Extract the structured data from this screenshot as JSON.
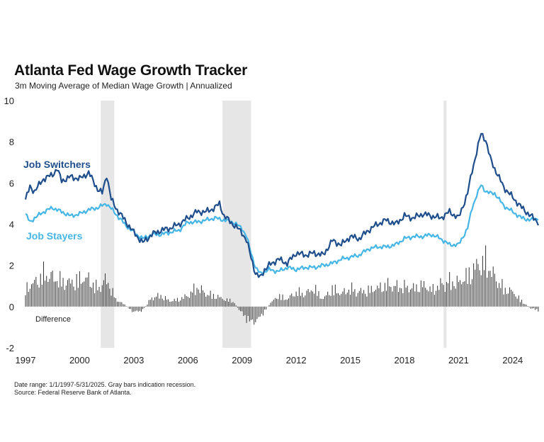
{
  "header": {
    "title": "Atlanta Fed Wage Growth Tracker",
    "subtitle": "3m Moving Average of Median Wage Growth | Annualized"
  },
  "footnote": {
    "line1": "Date range: 1/1/1997-5/31/2025. Gray bars indication recession.",
    "line2": "Source: Federal Reserve Bank of Atlanta."
  },
  "colors": {
    "switchers": "#1f4e8c",
    "stayers": "#45b6e6",
    "difference": "#333333",
    "recession": "#e6e6e6"
  },
  "chart_data": {
    "type": "line",
    "title": "Atlanta Fed Wage Growth Tracker",
    "subtitle": "3m Moving Average of Median Wage Growth | Annualized",
    "xlabel": "",
    "ylabel": "",
    "xlim": [
      1997.0,
      2025.42
    ],
    "ylim": [
      -2,
      10
    ],
    "yticks": [
      "-2",
      "0",
      "2",
      "4",
      "6",
      "8",
      "10"
    ],
    "xticks": [
      "1997",
      "2000",
      "2003",
      "2006",
      "2009",
      "2012",
      "2015",
      "2018",
      "2021",
      "2024"
    ],
    "recessions": [
      [
        2001.17,
        2001.92
      ],
      [
        2007.92,
        2009.5
      ],
      [
        2020.17,
        2020.33
      ]
    ],
    "series": [
      {
        "name": "Job Switchers",
        "x": [
          1997.0,
          1997.25,
          1997.5,
          1998.0,
          1998.5,
          1998.75,
          1999.0,
          1999.5,
          2000.0,
          2000.5,
          2001.0,
          2001.25,
          2001.5,
          2001.75,
          2002.0,
          2002.5,
          2003.0,
          2003.5,
          2004.0,
          2004.5,
          2005.0,
          2005.5,
          2006.0,
          2006.5,
          2007.0,
          2007.5,
          2007.75,
          2008.0,
          2008.5,
          2009.0,
          2009.25,
          2009.5,
          2009.75,
          2010.0,
          2010.25,
          2010.5,
          2011.0,
          2011.5,
          2012.0,
          2012.5,
          2013.0,
          2013.5,
          2014.0,
          2014.5,
          2015.0,
          2015.5,
          2016.0,
          2016.5,
          2017.0,
          2017.5,
          2018.0,
          2018.5,
          2019.0,
          2019.5,
          2020.0,
          2020.5,
          2021.0,
          2021.5,
          2021.75,
          2022.0,
          2022.25,
          2022.5,
          2022.75,
          2023.0,
          2023.5,
          2024.0,
          2024.5,
          2025.0,
          2025.42
        ],
        "values": [
          5.2,
          5.8,
          5.6,
          6.2,
          6.4,
          6.7,
          6.1,
          6.3,
          6.2,
          6.5,
          5.7,
          5.5,
          6.4,
          5.2,
          4.8,
          4.2,
          3.6,
          3.1,
          3.5,
          3.7,
          3.8,
          4.0,
          4.3,
          4.6,
          4.6,
          4.8,
          5.0,
          4.4,
          4.0,
          3.6,
          3.2,
          2.4,
          1.6,
          1.4,
          1.8,
          2.0,
          2.3,
          2.1,
          2.6,
          2.5,
          2.6,
          2.5,
          3.2,
          3.0,
          3.4,
          3.3,
          3.7,
          4.0,
          4.2,
          4.0,
          4.4,
          4.3,
          4.5,
          4.4,
          4.3,
          4.6,
          4.3,
          5.5,
          6.6,
          7.5,
          8.4,
          8.1,
          7.2,
          6.7,
          5.8,
          5.3,
          4.8,
          4.4,
          4.1
        ]
      },
      {
        "name": "Job Stayers",
        "x": [
          1997.0,
          1997.25,
          1997.5,
          1998.0,
          1998.5,
          1999.0,
          1999.5,
          2000.0,
          2000.5,
          2001.0,
          2001.5,
          2002.0,
          2002.5,
          2003.0,
          2003.5,
          2004.0,
          2004.5,
          2005.0,
          2005.5,
          2006.0,
          2006.5,
          2007.0,
          2007.5,
          2008.0,
          2008.5,
          2009.0,
          2009.25,
          2009.5,
          2009.75,
          2010.0,
          2010.5,
          2011.0,
          2011.5,
          2012.0,
          2012.5,
          2013.0,
          2013.5,
          2014.0,
          2014.5,
          2015.0,
          2015.5,
          2016.0,
          2016.5,
          2017.0,
          2017.5,
          2018.0,
          2018.5,
          2019.0,
          2019.5,
          2020.0,
          2020.5,
          2021.0,
          2021.5,
          2021.75,
          2022.0,
          2022.25,
          2022.5,
          2022.75,
          2023.0,
          2023.5,
          2024.0,
          2024.5,
          2025.0,
          2025.42
        ],
        "values": [
          4.5,
          4.1,
          4.3,
          4.6,
          4.8,
          4.6,
          4.4,
          4.5,
          4.7,
          4.8,
          5.0,
          4.5,
          4.0,
          3.6,
          3.3,
          3.5,
          3.5,
          3.6,
          3.7,
          4.1,
          4.1,
          4.2,
          4.3,
          4.2,
          4.1,
          3.8,
          3.4,
          2.6,
          1.9,
          1.6,
          1.8,
          1.7,
          1.9,
          1.8,
          1.9,
          1.9,
          2.0,
          2.1,
          2.3,
          2.4,
          2.5,
          2.8,
          2.9,
          2.9,
          3.0,
          3.3,
          3.4,
          3.4,
          3.5,
          3.3,
          3.0,
          3.0,
          3.8,
          4.8,
          5.4,
          5.9,
          5.6,
          5.5,
          5.5,
          4.9,
          4.6,
          4.3,
          4.2,
          4.3
        ]
      },
      {
        "name": "Difference",
        "x": [
          1997.0,
          1997.5,
          1998.0,
          1998.5,
          1999.0,
          1999.5,
          2000.0,
          2000.5,
          2001.0,
          2001.5,
          2002.0,
          2002.5,
          2003.0,
          2003.5,
          2004.0,
          2004.5,
          2005.0,
          2005.5,
          2006.0,
          2006.5,
          2007.0,
          2007.5,
          2008.0,
          2008.5,
          2009.0,
          2009.5,
          2010.0,
          2010.5,
          2011.0,
          2011.5,
          2012.0,
          2012.5,
          2013.0,
          2013.5,
          2014.0,
          2014.5,
          2015.0,
          2015.5,
          2016.0,
          2016.5,
          2017.0,
          2017.5,
          2018.0,
          2018.5,
          2019.0,
          2019.5,
          2020.0,
          2020.5,
          2021.0,
          2021.5,
          2022.0,
          2022.5,
          2023.0,
          2023.5,
          2024.0,
          2024.5,
          2025.0,
          2025.42
        ],
        "values": [
          1.0,
          1.3,
          1.8,
          1.6,
          1.4,
          1.3,
          1.5,
          1.5,
          1.0,
          1.5,
          0.4,
          0.1,
          -0.3,
          -0.2,
          0.5,
          0.6,
          0.3,
          0.4,
          0.6,
          1.1,
          0.7,
          0.6,
          0.4,
          0.3,
          -0.4,
          -0.9,
          -0.6,
          0.1,
          0.6,
          0.4,
          0.8,
          0.7,
          1.0,
          0.4,
          1.0,
          0.7,
          1.0,
          0.8,
          0.9,
          1.0,
          1.2,
          1.1,
          1.1,
          1.0,
          1.2,
          0.9,
          1.2,
          1.4,
          1.3,
          1.7,
          2.2,
          2.5,
          1.6,
          1.0,
          0.8,
          0.3,
          -0.1,
          -0.2
        ]
      }
    ],
    "annotations": [
      "Job Switchers",
      "Job Stayers",
      "Difference"
    ]
  }
}
